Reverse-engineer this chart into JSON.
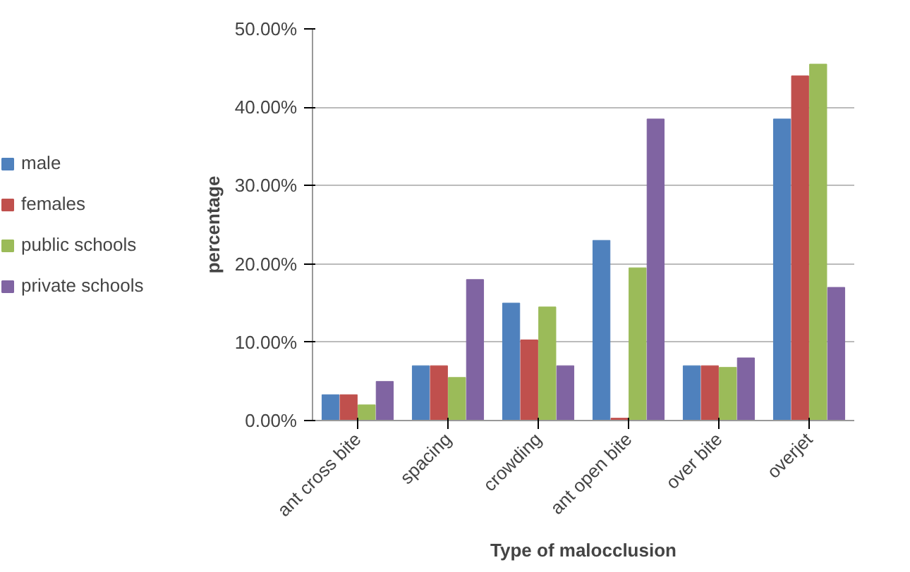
{
  "chart_data": {
    "type": "bar",
    "xlabel": "Type of malocclusion",
    "ylabel": "percentage",
    "categories": [
      "ant cross bite",
      "spacing",
      "crowding",
      "ant open bite",
      "over bite",
      "overjet"
    ],
    "series": [
      {
        "name": "male",
        "color": "#4f81bd",
        "values": [
          3.3,
          7,
          15,
          23,
          7,
          38.5
        ]
      },
      {
        "name": "females",
        "color": "#c0504d",
        "values": [
          3.3,
          7,
          10.3,
          0.3,
          7,
          44
        ]
      },
      {
        "name": "public schools",
        "color": "#9bbb59",
        "values": [
          2,
          5.5,
          14.5,
          19.5,
          6.8,
          45.5
        ]
      },
      {
        "name": "private schools",
        "color": "#8064a2",
        "values": [
          5,
          18,
          7,
          38.5,
          8,
          17
        ]
      }
    ],
    "ylim": [
      0,
      50
    ],
    "yticks": [
      {
        "value": 0,
        "label": "0.00%"
      },
      {
        "value": 10,
        "label": "10.00%"
      },
      {
        "value": 20,
        "label": "20.00%"
      },
      {
        "value": 30,
        "label": "30.00%"
      },
      {
        "value": 40,
        "label": "40.00%"
      },
      {
        "value": 50,
        "label": "50.00%"
      }
    ],
    "grid": "y",
    "legend": "left"
  }
}
